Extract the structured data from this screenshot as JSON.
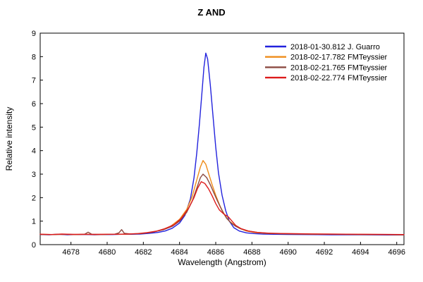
{
  "window": {
    "background": "#ffffff"
  },
  "chart_data": {
    "type": "line",
    "title": "Z AND",
    "xlabel": "Wavelength (Angstrom)",
    "ylabel": "Relative intensity",
    "xlim": [
      4676.3,
      4696.4
    ],
    "ylim": [
      0,
      9
    ],
    "x_ticks": [
      4678,
      4680,
      4682,
      4684,
      4686,
      4688,
      4690,
      4692,
      4694,
      4696
    ],
    "y_ticks": [
      0,
      1,
      2,
      3,
      4,
      5,
      6,
      7,
      8,
      9
    ],
    "grid": false,
    "legend_position": "top-right-inside",
    "axis_color": "#000000",
    "series": [
      {
        "name": "2018-01-30.812  J. Guarro",
        "date": "2018-01-30.812",
        "observer": "J. Guarro",
        "color": "#2222dd",
        "peak": {
          "wavelength": 4685.45,
          "intensity": 8.15
        },
        "points": [
          [
            4676.3,
            0.43
          ],
          [
            4676.8,
            0.42
          ],
          [
            4677.3,
            0.44
          ],
          [
            4677.8,
            0.42
          ],
          [
            4678.3,
            0.43
          ],
          [
            4678.8,
            0.43
          ],
          [
            4679.3,
            0.42
          ],
          [
            4679.8,
            0.43
          ],
          [
            4680.3,
            0.43
          ],
          [
            4680.8,
            0.44
          ],
          [
            4681.3,
            0.44
          ],
          [
            4681.8,
            0.45
          ],
          [
            4682.3,
            0.48
          ],
          [
            4682.8,
            0.52
          ],
          [
            4683.2,
            0.58
          ],
          [
            4683.6,
            0.7
          ],
          [
            4684.0,
            0.92
          ],
          [
            4684.3,
            1.25
          ],
          [
            4684.6,
            1.95
          ],
          [
            4684.8,
            2.85
          ],
          [
            4684.95,
            3.9
          ],
          [
            4685.1,
            5.15
          ],
          [
            4685.25,
            6.6
          ],
          [
            4685.35,
            7.55
          ],
          [
            4685.45,
            8.15
          ],
          [
            4685.55,
            7.9
          ],
          [
            4685.7,
            6.8
          ],
          [
            4685.85,
            5.45
          ],
          [
            4686.0,
            4.15
          ],
          [
            4686.15,
            3.05
          ],
          [
            4686.35,
            2.1
          ],
          [
            4686.55,
            1.45
          ],
          [
            4686.75,
            1.0
          ],
          [
            4687.0,
            0.72
          ],
          [
            4687.3,
            0.58
          ],
          [
            4687.7,
            0.5
          ],
          [
            4688.1,
            0.47
          ],
          [
            4688.6,
            0.45
          ],
          [
            4689.2,
            0.44
          ],
          [
            4690.0,
            0.435
          ],
          [
            4690.8,
            0.43
          ],
          [
            4691.6,
            0.425
          ],
          [
            4692.4,
            0.42
          ],
          [
            4693.2,
            0.42
          ],
          [
            4694.0,
            0.42
          ],
          [
            4694.8,
            0.415
          ],
          [
            4695.6,
            0.41
          ],
          [
            4696.4,
            0.41
          ]
        ]
      },
      {
        "name": "2018-02-17.782  FMTeyssier",
        "date": "2018-02-17.782",
        "observer": "FMTeyssier",
        "color": "#ef8c1a",
        "peak": {
          "wavelength": 4685.3,
          "intensity": 3.58
        },
        "points": [
          [
            4676.3,
            0.44
          ],
          [
            4677.0,
            0.43
          ],
          [
            4677.6,
            0.44
          ],
          [
            4678.2,
            0.43
          ],
          [
            4678.8,
            0.44
          ],
          [
            4679.4,
            0.43
          ],
          [
            4680.0,
            0.44
          ],
          [
            4680.6,
            0.44
          ],
          [
            4681.2,
            0.45
          ],
          [
            4681.8,
            0.47
          ],
          [
            4682.4,
            0.52
          ],
          [
            4683.0,
            0.62
          ],
          [
            4683.5,
            0.78
          ],
          [
            4684.0,
            1.08
          ],
          [
            4684.4,
            1.5
          ],
          [
            4684.7,
            2.05
          ],
          [
            4684.95,
            2.75
          ],
          [
            4685.15,
            3.3
          ],
          [
            4685.3,
            3.58
          ],
          [
            4685.45,
            3.42
          ],
          [
            4685.6,
            3.05
          ],
          [
            4685.8,
            2.55
          ],
          [
            4686.0,
            2.1
          ],
          [
            4686.25,
            1.62
          ],
          [
            4686.5,
            1.25
          ],
          [
            4686.75,
            1.0
          ],
          [
            4687.0,
            0.85
          ],
          [
            4687.3,
            0.7
          ],
          [
            4687.7,
            0.58
          ],
          [
            4688.2,
            0.51
          ],
          [
            4688.8,
            0.48
          ],
          [
            4689.5,
            0.47
          ],
          [
            4690.3,
            0.46
          ],
          [
            4691.2,
            0.45
          ],
          [
            4692.0,
            0.445
          ],
          [
            4693.0,
            0.44
          ],
          [
            4694.0,
            0.435
          ],
          [
            4695.0,
            0.43
          ],
          [
            4696.4,
            0.42
          ]
        ]
      },
      {
        "name": "2018-02-21.765  FMTeyssier",
        "date": "2018-02-21.765",
        "observer": "FMTeyssier",
        "color": "#8b4a42",
        "peak": {
          "wavelength": 4685.3,
          "intensity": 3.0
        },
        "points": [
          [
            4676.3,
            0.43
          ],
          [
            4677.0,
            0.43
          ],
          [
            4677.7,
            0.44
          ],
          [
            4678.4,
            0.43
          ],
          [
            4678.75,
            0.44
          ],
          [
            4678.95,
            0.53
          ],
          [
            4679.15,
            0.44
          ],
          [
            4679.8,
            0.43
          ],
          [
            4680.4,
            0.44
          ],
          [
            4680.65,
            0.5
          ],
          [
            4680.8,
            0.64
          ],
          [
            4680.95,
            0.48
          ],
          [
            4681.3,
            0.45
          ],
          [
            4681.9,
            0.47
          ],
          [
            4682.5,
            0.53
          ],
          [
            4683.1,
            0.63
          ],
          [
            4683.6,
            0.78
          ],
          [
            4684.0,
            1.0
          ],
          [
            4684.4,
            1.38
          ],
          [
            4684.7,
            1.85
          ],
          [
            4684.95,
            2.4
          ],
          [
            4685.15,
            2.85
          ],
          [
            4685.3,
            3.0
          ],
          [
            4685.5,
            2.85
          ],
          [
            4685.7,
            2.55
          ],
          [
            4685.9,
            2.2
          ],
          [
            4686.1,
            1.85
          ],
          [
            4686.35,
            1.45
          ],
          [
            4686.6,
            1.12
          ],
          [
            4686.85,
            0.92
          ],
          [
            4687.1,
            0.78
          ],
          [
            4687.4,
            0.67
          ],
          [
            4687.8,
            0.58
          ],
          [
            4688.3,
            0.52
          ],
          [
            4688.9,
            0.48
          ],
          [
            4689.6,
            0.46
          ],
          [
            4690.4,
            0.45
          ],
          [
            4691.3,
            0.445
          ],
          [
            4692.2,
            0.44
          ],
          [
            4693.2,
            0.435
          ],
          [
            4694.2,
            0.43
          ],
          [
            4695.2,
            0.425
          ],
          [
            4696.4,
            0.42
          ]
        ]
      },
      {
        "name": "2018-02-22.774  FMTeyssier",
        "date": "2018-02-22.774",
        "observer": "FMTeyssier",
        "color": "#dd1c1c",
        "peak": {
          "wavelength": 4685.2,
          "intensity": 2.68
        },
        "points": [
          [
            4676.3,
            0.445
          ],
          [
            4676.9,
            0.43
          ],
          [
            4677.5,
            0.45
          ],
          [
            4678.1,
            0.435
          ],
          [
            4678.7,
            0.44
          ],
          [
            4679.3,
            0.435
          ],
          [
            4679.9,
            0.44
          ],
          [
            4680.5,
            0.44
          ],
          [
            4681.1,
            0.45
          ],
          [
            4681.7,
            0.47
          ],
          [
            4682.2,
            0.51
          ],
          [
            4682.7,
            0.57
          ],
          [
            4683.2,
            0.68
          ],
          [
            4683.7,
            0.85
          ],
          [
            4684.1,
            1.12
          ],
          [
            4684.5,
            1.55
          ],
          [
            4684.8,
            2.0
          ],
          [
            4685.0,
            2.4
          ],
          [
            4685.2,
            2.68
          ],
          [
            4685.4,
            2.6
          ],
          [
            4685.6,
            2.38
          ],
          [
            4685.8,
            2.08
          ],
          [
            4686.0,
            1.75
          ],
          [
            4686.2,
            1.48
          ],
          [
            4686.45,
            1.3
          ],
          [
            4686.7,
            1.18
          ],
          [
            4686.9,
            1.0
          ],
          [
            4687.1,
            0.82
          ],
          [
            4687.4,
            0.68
          ],
          [
            4687.8,
            0.58
          ],
          [
            4688.3,
            0.52
          ],
          [
            4688.9,
            0.49
          ],
          [
            4689.6,
            0.475
          ],
          [
            4690.4,
            0.465
          ],
          [
            4691.3,
            0.455
          ],
          [
            4692.2,
            0.45
          ],
          [
            4693.2,
            0.445
          ],
          [
            4694.2,
            0.44
          ],
          [
            4695.2,
            0.435
          ],
          [
            4696.4,
            0.43
          ]
        ]
      }
    ]
  }
}
